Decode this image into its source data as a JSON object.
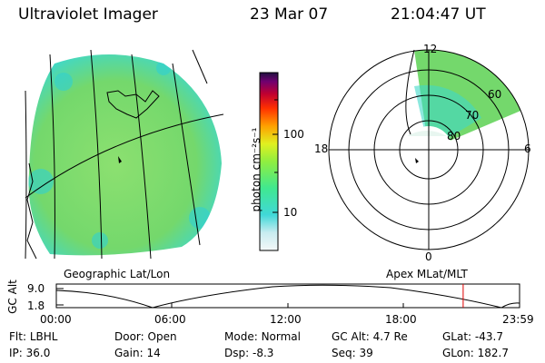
{
  "header": {
    "instrument": "Ultraviolet Imager",
    "date": "23 Mar 07",
    "time": "21:04:47 UT"
  },
  "panels": {
    "left_caption": "Geographic Lat/Lon",
    "right_caption": "Apex MLat/MLT"
  },
  "colorbar": {
    "unit_label": "photon cm⁻²s⁻¹",
    "ticks": [
      "100",
      "10"
    ],
    "colors": [
      "#e8f0f0",
      "#c8ecf0",
      "#40d8d8",
      "#40e890",
      "#90ee40",
      "#e0f020",
      "#ffa000",
      "#ff3000",
      "#c00030",
      "#700070",
      "#201040"
    ]
  },
  "polar": {
    "mlt_labels": [
      "12",
      "6",
      "0",
      "18"
    ],
    "mlat_labels": [
      "60",
      "70",
      "80"
    ]
  },
  "altitude_plot": {
    "ylabel": "GC Alt",
    "yticks": [
      "9.0",
      "1.8"
    ],
    "xticks": [
      "00:00",
      "06:00",
      "12:00",
      "18:00",
      "23:59"
    ],
    "current_hour": 21.08
  },
  "status": {
    "row1": [
      {
        "label": "Flt:",
        "value": "LBHL"
      },
      {
        "label": "Door:",
        "value": "Open"
      },
      {
        "label": "Mode:",
        "value": "Normal"
      },
      {
        "label": "GC Alt:",
        "value": "4.7 Re"
      },
      {
        "label": "GLat:",
        "value": "-43.7"
      }
    ],
    "row2": [
      {
        "label": "IP:",
        "value": "36.0"
      },
      {
        "label": "Gain:",
        "value": "14"
      },
      {
        "label": "Dsp:",
        "value": "-8.3"
      },
      {
        "label": "Seq:",
        "value": "39"
      },
      {
        "label": "GLon:",
        "value": "182.7"
      }
    ]
  },
  "colors": {
    "aurora_green": "#7cd86a",
    "aurora_cyan": "#40d8d8",
    "marker_red": "#e00000"
  }
}
